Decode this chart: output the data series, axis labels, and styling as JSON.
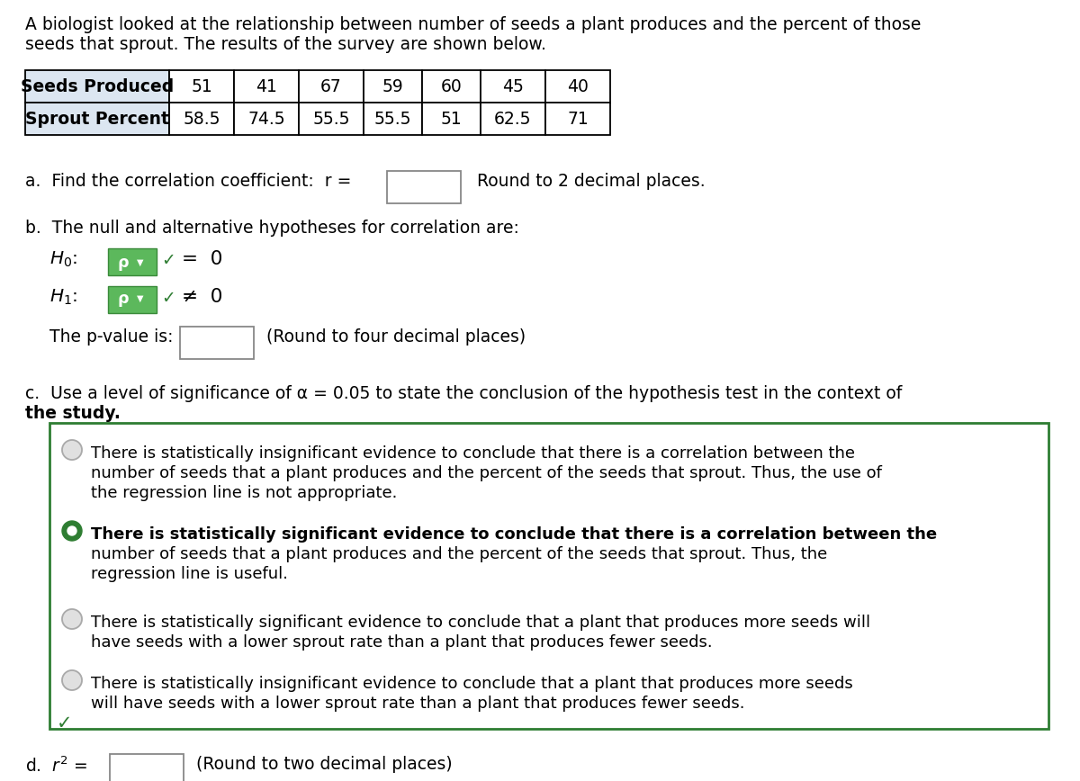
{
  "title_line1": "A biologist looked at the relationship between number of seeds a plant produces and the percent of those",
  "title_line2": "seeds that sprout. The results of the survey are shown below.",
  "table_headers": [
    "Seeds Produced",
    "Sprout Percent"
  ],
  "table_values_row1": [
    "51",
    "41",
    "67",
    "59",
    "60",
    "45",
    "40"
  ],
  "table_values_row2": [
    "58.5",
    "74.5",
    "55.5",
    "55.5",
    "51",
    "62.5",
    "71"
  ],
  "part_a_text": "a.  Find the correlation coefficient:  r =",
  "part_a_note": "Round to 2 decimal places.",
  "part_b_intro": "b.  The null and alternative hypotheses for correlation are:",
  "part_b_pval": "The p-value is:",
  "part_b_pval_note": "(Round to four decimal places)",
  "part_c_line1": "c.  Use a level of significance of α = 0.05 to state the conclusion of the hypothesis test in the context of",
  "part_c_line2": "the study.",
  "options": [
    [
      "There is statistically insignificant evidence to conclude that there is a correlation between the",
      "number of seeds that a plant produces and the percent of the seeds that sprout. Thus, the use of",
      "the regression line is not appropriate."
    ],
    [
      "There is statistically significant evidence to conclude that there is a correlation between the",
      "number of seeds that a plant produces and the percent of the seeds that sprout. Thus, the",
      "regression line is useful."
    ],
    [
      "There is statistically significant evidence to conclude that a plant that produces more seeds will",
      "have seeds with a lower sprout rate than a plant that produces fewer seeds."
    ],
    [
      "There is statistically insignificant evidence to conclude that a plant that produces more seeds",
      "will have seeds with a lower sprout rate than a plant that produces fewer seeds."
    ]
  ],
  "selected_option": 1,
  "part_d_note": "(Round to two decimal places)",
  "bg_color": "#ffffff",
  "text_color": "#000000",
  "table_border_color": "#000000",
  "table_header_bg": "#dce6f1",
  "table_data_bg": "#ffffff",
  "box_border_color": "#2e7d32",
  "dropdown_bg": "#5cb85c",
  "dropdown_arrow_bg": "#4cae4c",
  "check_color": "#2e7d32",
  "radio_selected_color": "#2e7d32",
  "radio_unselected_fill": "#e0e0e0",
  "radio_unselected_edge": "#aaaaaa"
}
